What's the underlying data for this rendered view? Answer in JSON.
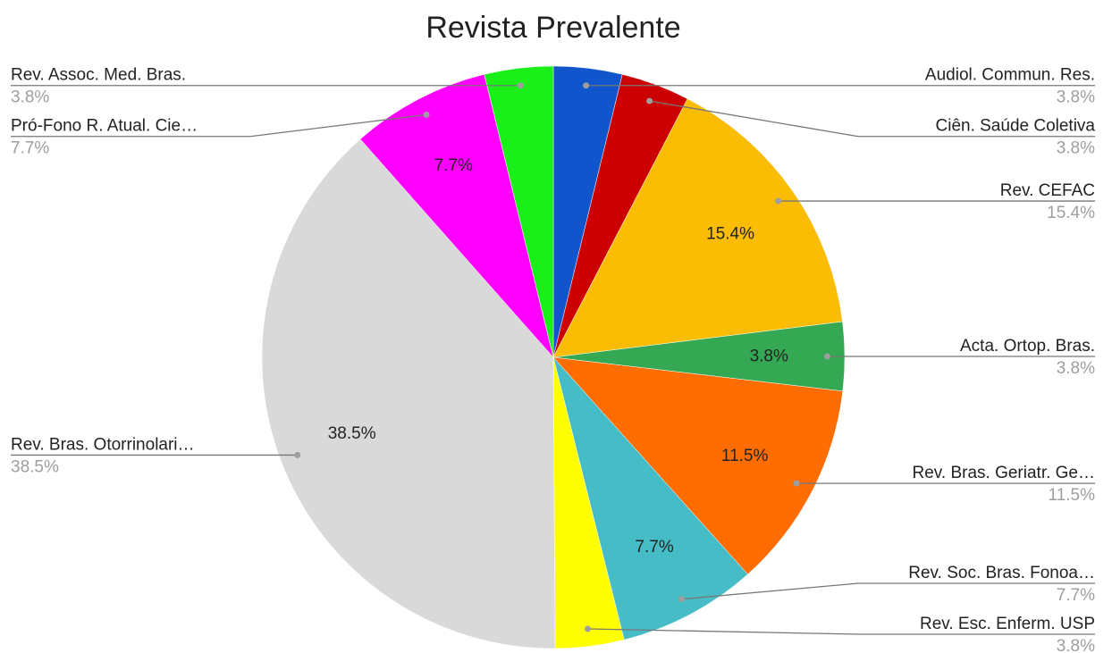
{
  "chart_data": {
    "type": "pie",
    "title": "Revista Prevalente",
    "categories": [
      "Audiol. Commun. Res.",
      "Ciên. Saúde Coletiva",
      "Rev. CEFAC",
      "Acta. Ortop. Bras.",
      "Rev. Bras. Geriatr. Ge…",
      "Rev. Soc. Bras. Fonoa…",
      "Rev. Esc. Enferm. USP",
      "Rev. Bras. Otorrinolari…",
      "Pró-Fono R. Atual. Cie…",
      "Rev. Assoc. Med. Bras."
    ],
    "values": [
      3.8,
      3.8,
      15.4,
      3.8,
      11.5,
      7.7,
      3.8,
      38.5,
      7.7,
      3.8
    ],
    "value_labels": [
      "3.8%",
      "3.8%",
      "15.4%",
      "3.8%",
      "11.5%",
      "7.7%",
      "3.8%",
      "38.5%",
      "7.7%",
      "3.8%"
    ],
    "colors": [
      "#1155cc",
      "#cc0000",
      "#fbbc04",
      "#34a853",
      "#ff6d01",
      "#46bdc6",
      "#ffff00",
      "#d9d9d9",
      "#ff00ff",
      "#1aef1a"
    ]
  }
}
